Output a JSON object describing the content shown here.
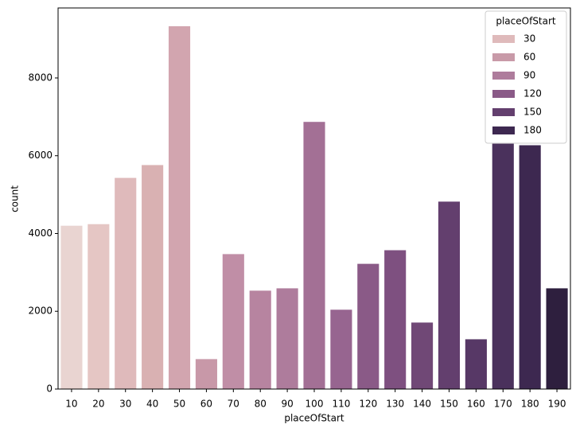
{
  "chart_data": {
    "type": "bar",
    "x_label": "placeOfStart",
    "y_label": "count",
    "categories": [
      "10",
      "20",
      "30",
      "40",
      "50",
      "60",
      "70",
      "80",
      "90",
      "100",
      "110",
      "120",
      "130",
      "140",
      "150",
      "160",
      "170",
      "180",
      "190"
    ],
    "values": [
      4200,
      4240,
      5430,
      5760,
      9330,
      770,
      3470,
      2530,
      2590,
      6870,
      2040,
      3220,
      3570,
      1710,
      4820,
      1280,
      6310,
      6270,
      2590
    ],
    "colors": [
      "#e9d4d1",
      "#e5c6c4",
      "#dfbabb",
      "#d9b1b2",
      "#d2a5af",
      "#c898a8",
      "#c08ea6",
      "#b784a0",
      "#ae7c9c",
      "#a37095",
      "#976590",
      "#8a5a87",
      "#7e5080",
      "#704876",
      "#633f6e",
      "#573866",
      "#4a315c",
      "#3d2850",
      "#2e1f3e"
    ],
    "ylim": [
      0,
      9800
    ],
    "yticks": [
      0,
      2000,
      4000,
      6000,
      8000
    ],
    "legend": {
      "title": "placeOfStart",
      "position": "upper right",
      "items": [
        {
          "label": "30",
          "color": "#dfbabb"
        },
        {
          "label": "60",
          "color": "#c89aa8"
        },
        {
          "label": "90",
          "color": "#ae7c9c"
        },
        {
          "label": "120",
          "color": "#8a5a87"
        },
        {
          "label": "150",
          "color": "#633f6e"
        },
        {
          "label": "180",
          "color": "#3d2850"
        }
      ]
    }
  }
}
